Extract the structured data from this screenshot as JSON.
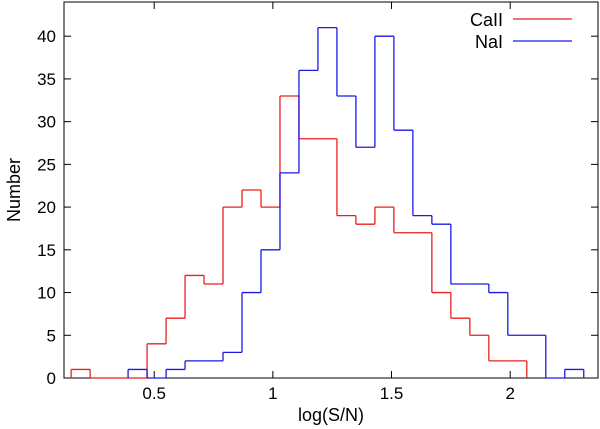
{
  "chart_data": {
    "type": "bar",
    "histogram": true,
    "xlabel": "log(S/N)",
    "ylabel": "Number",
    "xlim": [
      0.12,
      2.37
    ],
    "ylim": [
      0,
      44
    ],
    "xticks": [
      0.5,
      1,
      1.5,
      2
    ],
    "xtick_labels": [
      "0.5",
      "1",
      "1.5",
      "2"
    ],
    "yticks": [
      0,
      5,
      10,
      15,
      20,
      25,
      30,
      35,
      40
    ],
    "ytick_labels": [
      "0",
      "5",
      "10",
      "15",
      "20",
      "25",
      "30",
      "35",
      "40"
    ],
    "grid": false,
    "legend_position": "top-right",
    "bin_width": 0.08,
    "series": [
      {
        "name": "CaII",
        "color": "#e8201f",
        "bin_start": [
          0.15,
          0.23,
          0.31,
          0.39,
          0.47,
          0.55,
          0.63,
          0.71,
          0.79,
          0.87,
          0.95,
          1.03,
          1.11,
          1.19,
          1.27,
          1.35,
          1.43,
          1.51,
          1.59,
          1.67,
          1.75,
          1.83,
          1.91,
          1.99
        ],
        "values": [
          1,
          0,
          0,
          0,
          4,
          7,
          12,
          11,
          20,
          22,
          20,
          33,
          28,
          28,
          19,
          18,
          20,
          17,
          17,
          10,
          7,
          5,
          2,
          2
        ]
      },
      {
        "name": "NaI",
        "color": "#1a1ae6",
        "bin_start": [
          0.39,
          0.47,
          0.55,
          0.63,
          0.71,
          0.79,
          0.87,
          0.95,
          1.03,
          1.11,
          1.19,
          1.27,
          1.35,
          1.43,
          1.51,
          1.59,
          1.67,
          1.75,
          1.83,
          1.91,
          1.99,
          2.07,
          2.15,
          2.23
        ],
        "values": [
          1,
          0,
          1,
          2,
          2,
          3,
          10,
          15,
          24,
          36,
          41,
          33,
          27,
          40,
          29,
          19,
          18,
          11,
          11,
          10,
          5,
          5,
          0,
          1
        ]
      }
    ]
  }
}
